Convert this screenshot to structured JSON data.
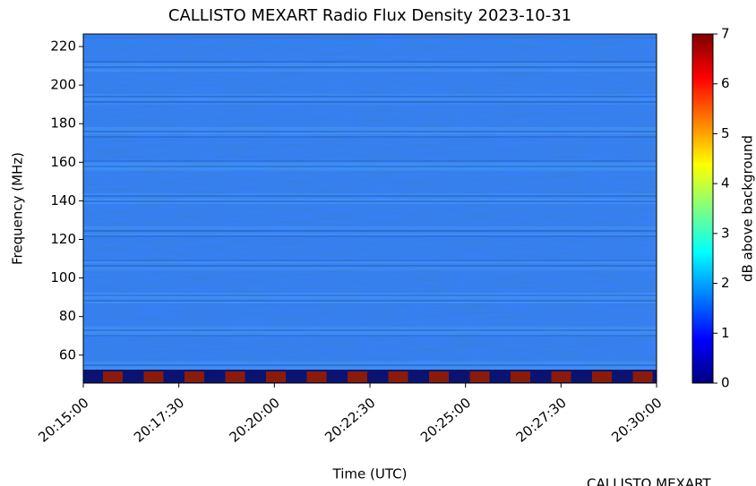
{
  "chart_data": {
    "type": "heatmap",
    "title": "CALLISTO MEXART Radio Flux Density 2023-10-31",
    "x_label": "Time (UTC)",
    "y_label": "Frequency (MHz)",
    "xlim": [
      "20:15:00",
      "20:30:00"
    ],
    "xticks": [
      "20:15:00",
      "20:17:30",
      "20:20:00",
      "20:22:30",
      "20:25:00",
      "20:27:30",
      "20:30:00"
    ],
    "ylim": [
      45.5,
      226.5
    ],
    "yticks": [
      60,
      80,
      100,
      120,
      140,
      160,
      180,
      200,
      220
    ],
    "colorbar": {
      "label": "dB above background",
      "lim": [
        0,
        7
      ],
      "ticks": [
        0,
        1,
        2,
        3,
        4,
        5,
        6,
        7
      ],
      "colormap": [
        "#00007f",
        "#0000ff",
        "#007fff",
        "#00ffff",
        "#7fff7f",
        "#ffff00",
        "#ff7f00",
        "#ff0000",
        "#7f0000"
      ]
    },
    "footer": "CALLISTO MEXART"
  }
}
